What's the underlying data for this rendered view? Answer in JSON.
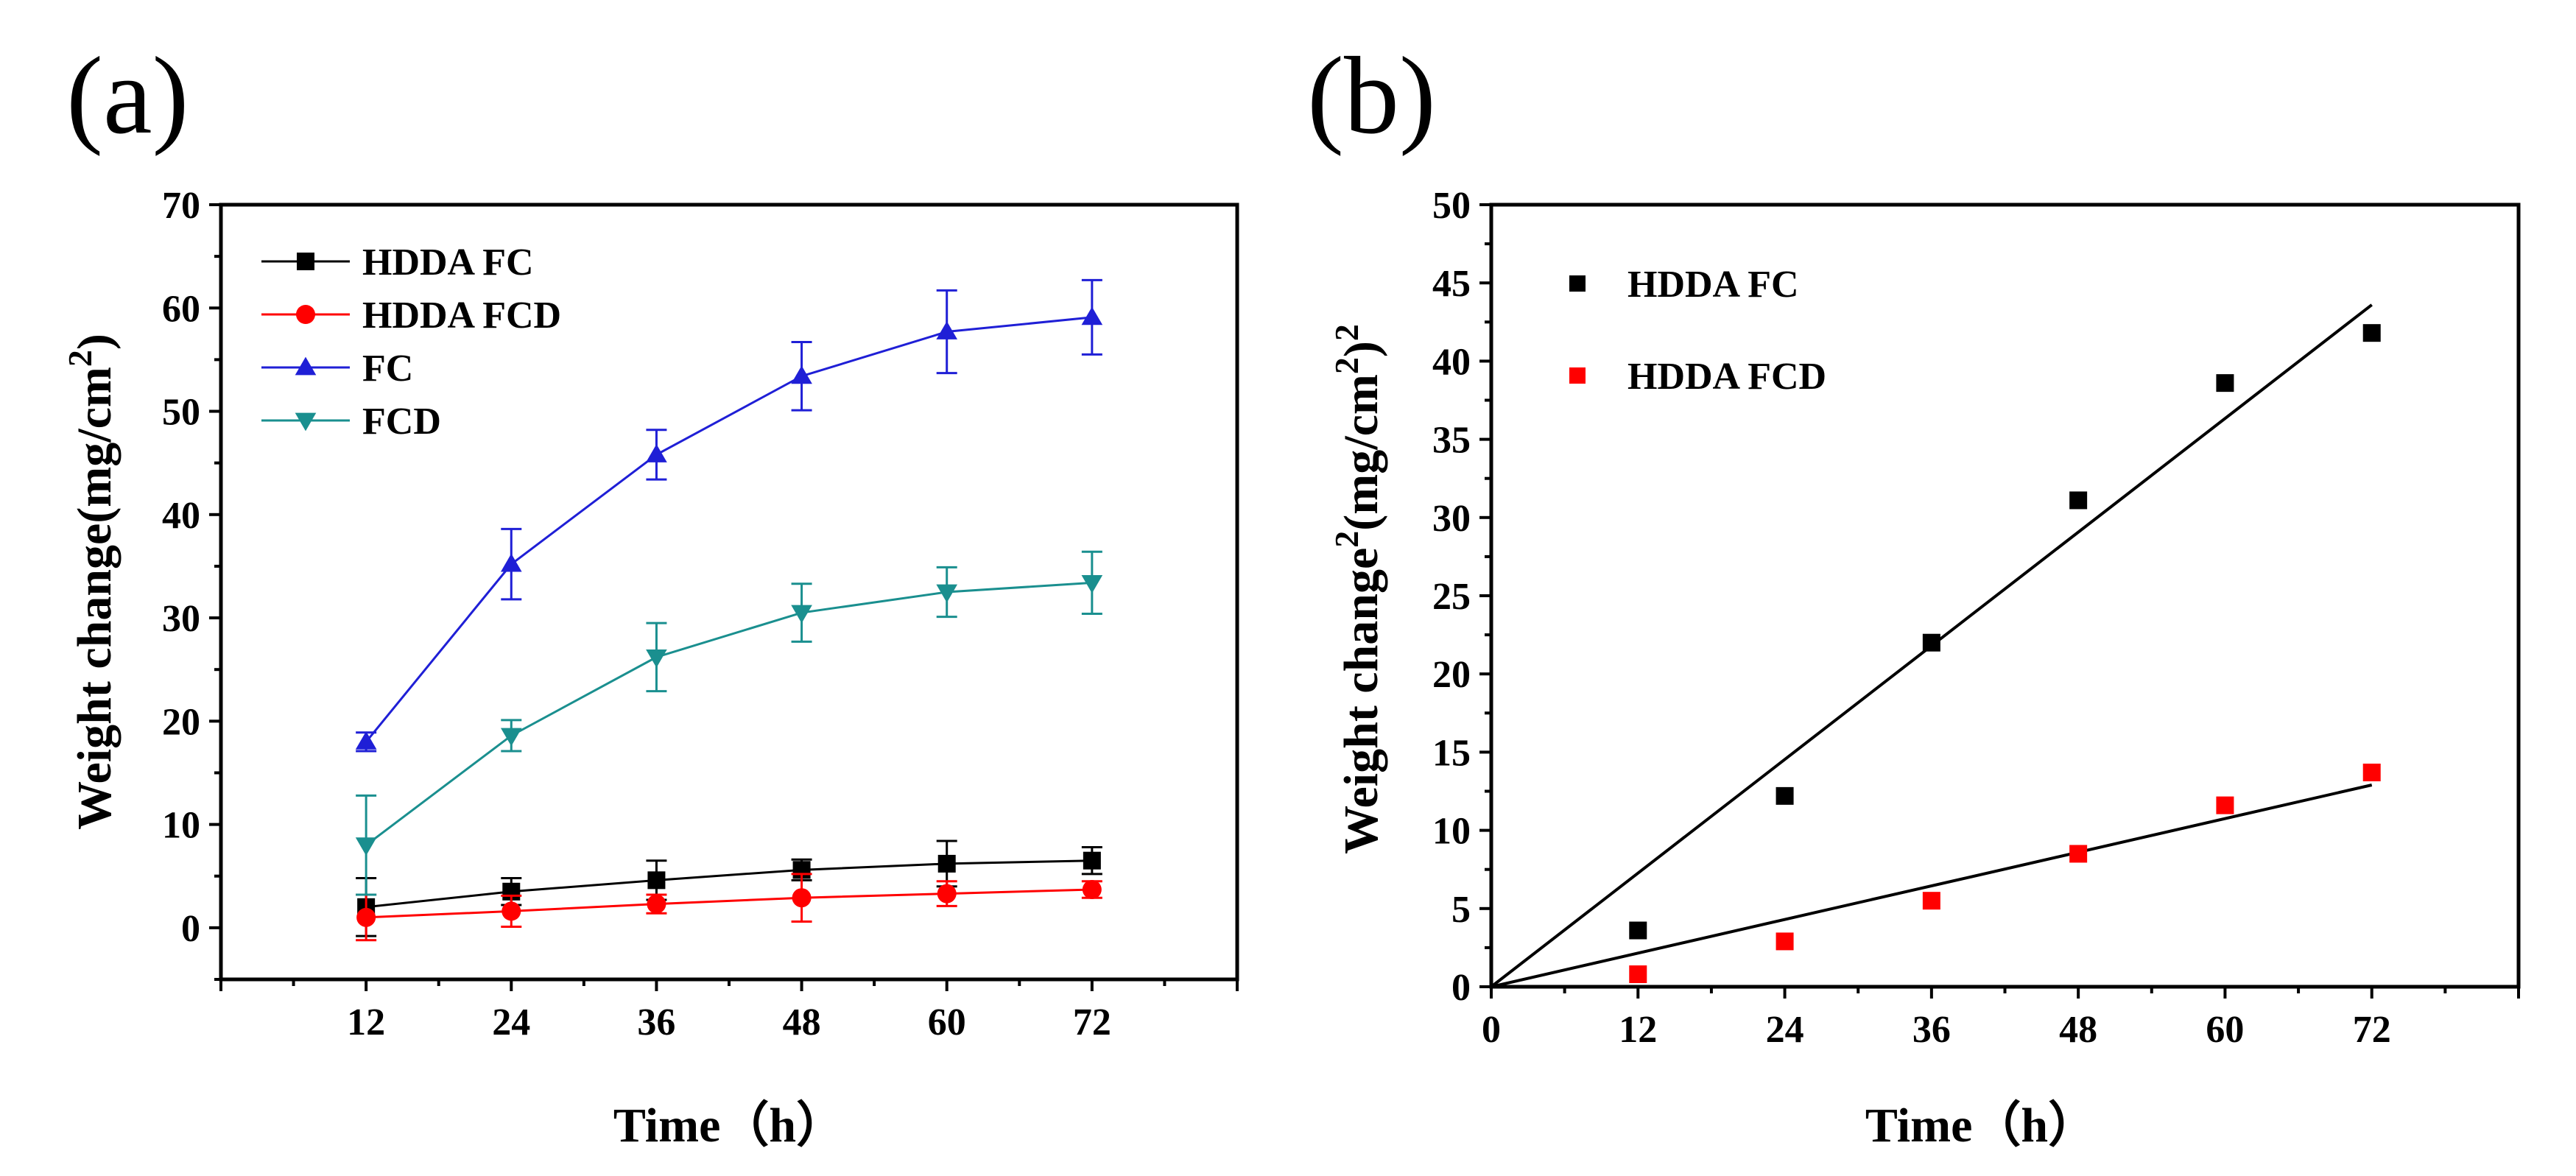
{
  "panel_labels": {
    "a": "(a)",
    "b": "(b)"
  },
  "chart_data": [
    {
      "type": "line",
      "panel": "(a)",
      "xlabel": "Time（h）",
      "ylabel_main": "Weight change(mg/cm",
      "ylabel_sup": "2",
      "ylabel_close": ")",
      "xlim": [
        0,
        84
      ],
      "ylim": [
        -5,
        70
      ],
      "x": [
        12,
        24,
        36,
        48,
        60,
        72
      ],
      "xticks": [
        "12",
        "24",
        "36",
        "48",
        "60",
        "72"
      ],
      "yticks": [
        "0",
        "10",
        "20",
        "30",
        "40",
        "50",
        "60",
        "70"
      ],
      "legend_position": "top-left",
      "error_bars": true,
      "series": [
        {
          "name": "HDDA FC",
          "marker": "square",
          "color": "#000000",
          "values": [
            2.0,
            3.5,
            4.6,
            5.6,
            6.2,
            6.5
          ],
          "errors": [
            2.8,
            1.3,
            1.9,
            1.0,
            2.2,
            1.3
          ]
        },
        {
          "name": "HDDA FCD",
          "marker": "circle",
          "color": "#ff0000",
          "values": [
            1.0,
            1.6,
            2.3,
            2.9,
            3.3,
            3.7
          ],
          "errors": [
            2.2,
            1.5,
            0.9,
            2.3,
            1.2,
            0.8
          ]
        },
        {
          "name": "FC",
          "marker": "triangle-up",
          "color": "#1f1fd6",
          "values": [
            18.0,
            35.2,
            45.8,
            53.4,
            57.7,
            59.1
          ],
          "errors": [
            0.9,
            3.4,
            2.4,
            3.3,
            4.0,
            3.6
          ]
        },
        {
          "name": "FCD",
          "marker": "triangle-down",
          "color": "#1a8f8f",
          "values": [
            8.0,
            18.6,
            26.2,
            30.5,
            32.5,
            33.4
          ],
          "errors": [
            4.8,
            1.5,
            3.3,
            2.8,
            2.4,
            3.0
          ]
        }
      ]
    },
    {
      "type": "scatter",
      "panel": "(b)",
      "xlabel": "Time（h）",
      "ylabel_main": "Weight change",
      "ylabel_sup1": "2",
      "ylabel_mid": "(mg/cm",
      "ylabel_sup2": "2",
      "ylabel_close": ")",
      "ylabel_sup3": "2",
      "xlim": [
        0,
        84
      ],
      "ylim": [
        0,
        50
      ],
      "xticks": [
        "0",
        "12",
        "24",
        "36",
        "48",
        "60",
        "72"
      ],
      "yticks": [
        "0",
        "5",
        "10",
        "15",
        "20",
        "25",
        "30",
        "35",
        "40",
        "45",
        "50"
      ],
      "legend_position": "top-left",
      "x": [
        12,
        24,
        36,
        48,
        60,
        72
      ],
      "series": [
        {
          "name": "HDDA FC",
          "marker": "square",
          "color": "#000000",
          "values": [
            3.6,
            12.2,
            22.0,
            31.1,
            38.6,
            41.8
          ],
          "fit": {
            "x": [
              0,
              72
            ],
            "y": [
              0,
              43.6
            ]
          }
        },
        {
          "name": "HDDA FCD",
          "marker": "square",
          "color": "#ff0000",
          "values": [
            0.8,
            2.9,
            5.5,
            8.5,
            11.6,
            13.7
          ],
          "fit": {
            "x": [
              0,
              72
            ],
            "y": [
              0,
              12.9
            ]
          }
        }
      ]
    }
  ]
}
